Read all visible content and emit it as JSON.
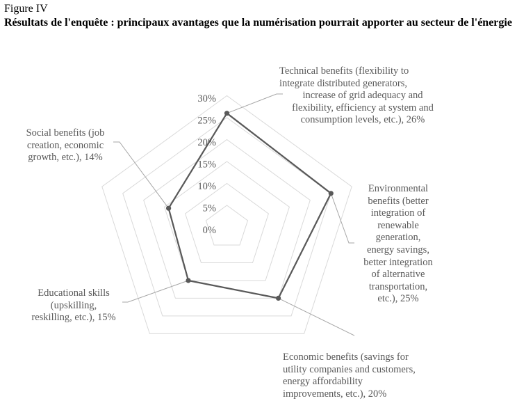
{
  "figure": {
    "label": "Figure IV",
    "title": "Résultats de l'enquête : principaux avantages que la numérisation pourrait apporter au secteur de l'énergie"
  },
  "chart_data": {
    "type": "radar",
    "title": "Résultats de l'enquête : principaux avantages que la numérisation pourrait apporter au secteur de l'énergie",
    "categories": [
      "Technical benefits",
      "Environmental benefits",
      "Economic benefits",
      "Educational skills",
      "Social benefits"
    ],
    "values": [
      26,
      25,
      20,
      15,
      14
    ],
    "unit": "%",
    "rlim": [
      0,
      30
    ],
    "ticks": [
      "0%",
      "5%",
      "10%",
      "15%",
      "20%",
      "25%",
      "30%"
    ],
    "tick_values": [
      0,
      5,
      10,
      15,
      20,
      25,
      30
    ],
    "data_labels": [
      [
        "Technical benefits (flexibility to",
        "integrate distributed generators,",
        "increase of grid adequacy and",
        "flexibility, efficiency at system and",
        "consumption levels, etc.), 26%"
      ],
      [
        "Environmental",
        "benefits (better",
        "integration of",
        "renewable",
        "generation,",
        "energy savings,",
        "better integration",
        "of alternative",
        "transportation,",
        "etc.), 25%"
      ],
      [
        "Economic benefits (savings for",
        "utility companies and customers,",
        "energy affordability",
        "improvements, etc.), 20%"
      ],
      [
        "Educational skills",
        "(upskilling,",
        "reskilling, etc.), 15%"
      ],
      [
        "Social benefits (job",
        "creation, economic",
        "growth, etc.), 14%"
      ]
    ],
    "grid": true,
    "legend": "none",
    "colors": {
      "series": "#595959",
      "grid": "#d9d9d9",
      "leader": "#a6a6a6",
      "text": "#595959"
    }
  }
}
